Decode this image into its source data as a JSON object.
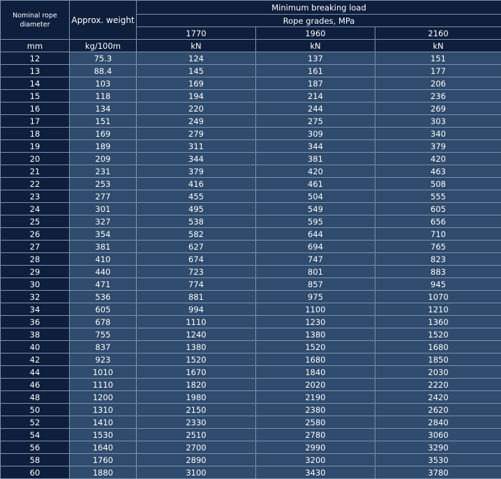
{
  "table": {
    "header": {
      "diameter": "Nominal rope diameter",
      "weight": "Approx. weight",
      "load": "Minimum breaking load",
      "grades_title": "Rope grades, MPa",
      "grades": [
        "1770",
        "1960",
        "2160"
      ]
    },
    "units": [
      "mm",
      "kg/100m",
      "kN",
      "kN",
      "kN"
    ],
    "rows": [
      [
        "12",
        "75.3",
        "124",
        "137",
        "151"
      ],
      [
        "13",
        "88.4",
        "145",
        "161",
        "177"
      ],
      [
        "14",
        "103",
        "169",
        "187",
        "206"
      ],
      [
        "15",
        "118",
        "194",
        "214",
        "236"
      ],
      [
        "16",
        "134",
        "220",
        "244",
        "269"
      ],
      [
        "17",
        "151",
        "249",
        "275",
        "303"
      ],
      [
        "18",
        "169",
        "279",
        "309",
        "340"
      ],
      [
        "19",
        "189",
        "311",
        "344",
        "379"
      ],
      [
        "20",
        "209",
        "344",
        "381",
        "420"
      ],
      [
        "21",
        "231",
        "379",
        "420",
        "463"
      ],
      [
        "22",
        "253",
        "416",
        "461",
        "508"
      ],
      [
        "23",
        "277",
        "455",
        "504",
        "555"
      ],
      [
        "24",
        "301",
        "495",
        "549",
        "605"
      ],
      [
        "25",
        "327",
        "538",
        "595",
        "656"
      ],
      [
        "26",
        "354",
        "582",
        "644",
        "710"
      ],
      [
        "27",
        "381",
        "627",
        "694",
        "765"
      ],
      [
        "28",
        "410",
        "674",
        "747",
        "823"
      ],
      [
        "29",
        "440",
        "723",
        "801",
        "883"
      ],
      [
        "30",
        "471",
        "774",
        "857",
        "945"
      ],
      [
        "32",
        "536",
        "881",
        "975",
        "1070"
      ],
      [
        "34",
        "605",
        "994",
        "1100",
        "1210"
      ],
      [
        "36",
        "678",
        "1110",
        "1230",
        "1360"
      ],
      [
        "38",
        "755",
        "1240",
        "1380",
        "1520"
      ],
      [
        "40",
        "837",
        "1380",
        "1520",
        "1680"
      ],
      [
        "42",
        "923",
        "1520",
        "1680",
        "1850"
      ],
      [
        "44",
        "1010",
        "1670",
        "1840",
        "2030"
      ],
      [
        "46",
        "1110",
        "1820",
        "2020",
        "2220"
      ],
      [
        "48",
        "1200",
        "1980",
        "2190",
        "2420"
      ],
      [
        "50",
        "1310",
        "2150",
        "2380",
        "2620"
      ],
      [
        "52",
        "1410",
        "2330",
        "2580",
        "2840"
      ],
      [
        "54",
        "1530",
        "2510",
        "2780",
        "3060"
      ],
      [
        "56",
        "1640",
        "2700",
        "2990",
        "3290"
      ],
      [
        "58",
        "1760",
        "2890",
        "3200",
        "3530"
      ],
      [
        "60",
        "1880",
        "3100",
        "3430",
        "3780"
      ]
    ]
  }
}
